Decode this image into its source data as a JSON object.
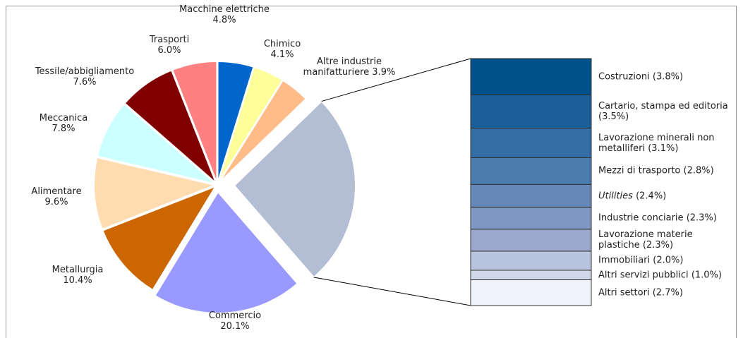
{
  "chart_data": {
    "type": "pie",
    "categories": [
      "Macchine elettriche",
      "Chimico",
      "Altre industrie manifatturiere",
      null,
      "Commercio",
      "Metallurgia",
      "Alimentare",
      "Meccanica",
      "Tessile/abbigliamento",
      "Trasporti"
    ],
    "values": [
      4.8,
      4.1,
      3.9,
      25.9,
      20.1,
      10.4,
      9.6,
      7.8,
      7.6,
      6.0
    ],
    "value_labels": [
      "4.8%",
      "4.1%",
      "3.9%",
      null,
      "20.1%",
      "10.4%",
      "9.6%",
      "7.8%",
      "7.6%",
      "6.0%"
    ],
    "colors": [
      "#0066cc",
      "#ffff99",
      "#ffbb88",
      "#b3bdd4",
      "#9999ff",
      "#cc6600",
      "#ffdcb0",
      "#ccffff",
      "#800000",
      "#ff8080"
    ],
    "breakdown": {
      "names": [
        "Costruzioni",
        "Cartario, stampa ed editoria",
        "Lavorazione minerali non metalliferi",
        "Mezzi di trasporto",
        "Utilities",
        "Industrie conciarie",
        "Lavorazione materie plastiche",
        "Immobiliari",
        "Altri servizi pubblici",
        "Altri settori"
      ],
      "values": [
        3.8,
        3.5,
        3.1,
        2.8,
        2.4,
        2.3,
        2.3,
        2.0,
        1.0,
        2.7
      ],
      "value_labels": [
        "(3.8%)",
        "(3.5%)",
        "(3.1%)",
        "(2.8%)",
        "(2.4%)",
        "(2.3%)",
        "(2.3%)",
        "(2.0%)",
        "(1.0%)",
        "(2.7%)"
      ],
      "colors": [
        "#00508a",
        "#1a5f98",
        "#336da3",
        "#4c7bae",
        "#6688b8",
        "#7f97c2",
        "#99a8cc",
        "#b8c3de",
        "#d0d8ea",
        "#f0f3f8"
      ]
    }
  }
}
